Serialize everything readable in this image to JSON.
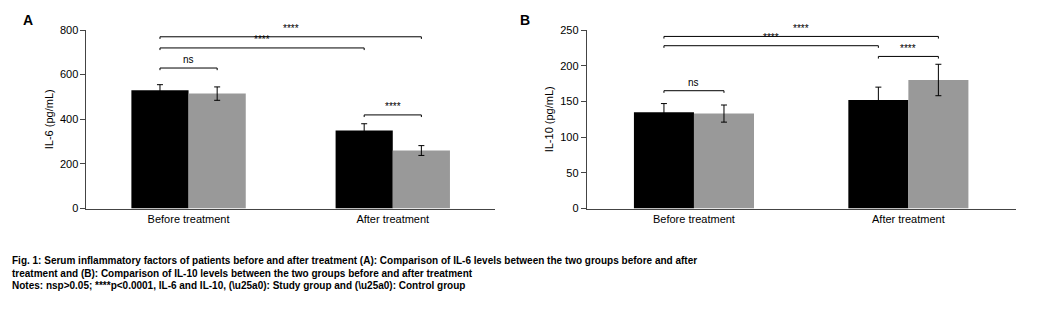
{
  "chart_data": [
    {
      "type": "bar",
      "title": "A",
      "ylabel": "IL-6 (pg/mL)",
      "categories": [
        "Before treatment",
        "After treatment"
      ],
      "series": [
        {
          "color": "#000000",
          "values": [
            530,
            350
          ],
          "errors": [
            25,
            30
          ]
        },
        {
          "color": "#999999",
          "values": [
            515,
            260
          ],
          "errors": [
            30,
            22
          ]
        }
      ],
      "ylim": [
        0,
        800
      ],
      "yticks": [
        0,
        200,
        400,
        600,
        800
      ],
      "grid": false,
      "annotations": [
        {
          "label": "ns",
          "y": 620,
          "from": {
            "category": 0,
            "series": 0
          },
          "to": {
            "category": 0,
            "series": 1
          }
        },
        {
          "label": "****",
          "y": 410,
          "from": {
            "category": 1,
            "series": 0
          },
          "to": {
            "category": 1,
            "series": 1
          }
        },
        {
          "label": "****",
          "y": 710,
          "from": {
            "category": 0,
            "series": 0
          },
          "to": {
            "category": 1,
            "series": 0
          }
        },
        {
          "label": "****",
          "y": 760,
          "from": {
            "category": 0,
            "series": 0
          },
          "to": {
            "category": 1,
            "series": 1
          }
        }
      ]
    },
    {
      "type": "bar",
      "title": "B",
      "ylabel": "IL-10 (pg/mL)",
      "categories": [
        "Before treatment",
        "After treatment"
      ],
      "series": [
        {
          "color": "#000000",
          "values": [
            135,
            152
          ],
          "errors": [
            12,
            18
          ]
        },
        {
          "color": "#999999",
          "values": [
            133,
            180
          ],
          "errors": [
            12,
            22
          ]
        }
      ],
      "ylim": [
        0,
        250
      ],
      "yticks": [
        0,
        50,
        100,
        150,
        200,
        250
      ],
      "grid": false,
      "annotations": [
        {
          "label": "ns",
          "y": 162,
          "from": {
            "category": 0,
            "series": 0
          },
          "to": {
            "category": 0,
            "series": 1
          }
        },
        {
          "label": "****",
          "y": 210,
          "from": {
            "category": 1,
            "series": 0
          },
          "to": {
            "category": 1,
            "series": 1
          }
        },
        {
          "label": "****",
          "y": 225,
          "from": {
            "category": 0,
            "series": 0
          },
          "to": {
            "category": 1,
            "series": 0
          }
        },
        {
          "label": "****",
          "y": 238,
          "from": {
            "category": 0,
            "series": 0
          },
          "to": {
            "category": 1,
            "series": 1
          }
        }
      ]
    }
  ],
  "caption": [
    "Fig. 1: Serum inflammatory factors of patients before and after treatment (A): Comparison of IL-6 levels between the two groups before and after",
    "treatment and (B): Comparison of IL-10 levels between the two groups before and after treatment",
    "Notes: nsp>0.05; ****p<0.0001, IL-6 and IL-10, (\\u25a0): Study group and (\\u25a0): Control group"
  ]
}
